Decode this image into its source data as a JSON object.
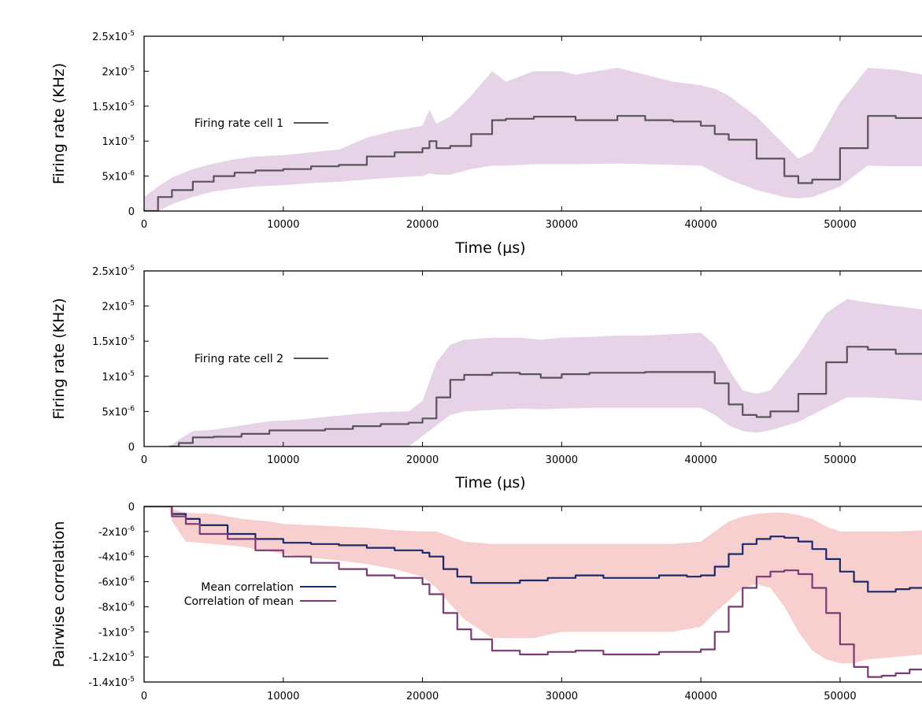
{
  "chart_data": [
    {
      "type": "line",
      "xlabel": "Time (µs)",
      "ylabel": "Firing rate (KHz)",
      "xlim": [
        0,
        56000
      ],
      "ylim": [
        0,
        2.5e-05
      ],
      "x_ticks": [
        0,
        10000,
        20000,
        30000,
        40000,
        50000
      ],
      "x_tick_labels": [
        "0",
        "10000",
        "20000",
        "30000",
        "40000",
        "50000"
      ],
      "y_ticks": [
        0,
        5e-06,
        1e-05,
        1.5e-05,
        2e-05,
        2.5e-05
      ],
      "y_tick_labels": [
        {
          "base": "0",
          "exp": ""
        },
        {
          "base": "5x10",
          "exp": "-6"
        },
        {
          "base": "1x10",
          "exp": "-5"
        },
        {
          "base": "1.5x10",
          "exp": "-5"
        },
        {
          "base": "2x10",
          "exp": "-5"
        },
        {
          "base": "2.5x10",
          "exp": "-5"
        }
      ],
      "legend_position": "left",
      "series": [
        {
          "name": "Firing rate cell 1",
          "color": "#595459",
          "band_color": "#e6d3e8",
          "x": [
            0,
            1000,
            2000,
            3500,
            5000,
            6500,
            8000,
            10000,
            12000,
            14000,
            16000,
            18000,
            20000,
            20500,
            21000,
            22000,
            23500,
            25000,
            26000,
            28000,
            30000,
            31000,
            34000,
            36000,
            38000,
            40000,
            41000,
            42000,
            44000,
            46000,
            47000,
            48000,
            50000,
            52000,
            54000,
            56000
          ],
          "y": [
            0,
            2e-06,
            3e-06,
            4.2e-06,
            5e-06,
            5.5e-06,
            5.8e-06,
            6e-06,
            6.4e-06,
            6.6e-06,
            7.8e-06,
            8.4e-06,
            9e-06,
            1e-05,
            9e-06,
            9.3e-06,
            1.1e-05,
            1.3e-05,
            1.32e-05,
            1.35e-05,
            1.35e-05,
            1.3e-05,
            1.36e-05,
            1.3e-05,
            1.28e-05,
            1.22e-05,
            1.1e-05,
            1.02e-05,
            7.5e-06,
            5e-06,
            4e-06,
            4.5e-06,
            9e-06,
            1.36e-05,
            1.33e-05,
            1.28e-05
          ],
          "upper": [
            2e-06,
            3.5e-06,
            4.8e-06,
            6e-06,
            6.8e-06,
            7.4e-06,
            7.8e-06,
            8e-06,
            8.4e-06,
            8.8e-06,
            1.05e-05,
            1.15e-05,
            1.22e-05,
            1.45e-05,
            1.25e-05,
            1.35e-05,
            1.65e-05,
            2e-05,
            1.85e-05,
            2e-05,
            2e-05,
            1.95e-05,
            2.05e-05,
            1.95e-05,
            1.85e-05,
            1.8e-05,
            1.75e-05,
            1.65e-05,
            1.35e-05,
            9.5e-06,
            7.5e-06,
            8.5e-06,
            1.55e-05,
            2.05e-05,
            2.02e-05,
            1.95e-05
          ],
          "lower": [
            0,
            0,
            1e-06,
            2e-06,
            2.8e-06,
            3.2e-06,
            3.5e-06,
            3.7e-06,
            4e-06,
            4.2e-06,
            4.5e-06,
            4.8e-06,
            5e-06,
            5.4e-06,
            5.2e-06,
            5.2e-06,
            6e-06,
            6.5e-06,
            6.5e-06,
            6.7e-06,
            6.7e-06,
            6.7e-06,
            6.8e-06,
            6.7e-06,
            6.6e-06,
            6.5e-06,
            5.5e-06,
            4.5e-06,
            3e-06,
            2e-06,
            1.8e-06,
            2e-06,
            3.5e-06,
            6.5e-06,
            6.4e-06,
            6.4e-06
          ]
        }
      ]
    },
    {
      "type": "line",
      "xlabel": "Time (µs)",
      "ylabel": "Firing rate (KHz)",
      "xlim": [
        0,
        56000
      ],
      "ylim": [
        0,
        2.5e-05
      ],
      "x_ticks": [
        0,
        10000,
        20000,
        30000,
        40000,
        50000
      ],
      "x_tick_labels": [
        "0",
        "10000",
        "20000",
        "30000",
        "40000",
        "50000"
      ],
      "y_ticks": [
        0,
        5e-06,
        1e-05,
        1.5e-05,
        2e-05,
        2.5e-05
      ],
      "y_tick_labels": [
        {
          "base": "0",
          "exp": ""
        },
        {
          "base": "5x10",
          "exp": "-6"
        },
        {
          "base": "1x10",
          "exp": "-5"
        },
        {
          "base": "1.5x10",
          "exp": "-5"
        },
        {
          "base": "2x10",
          "exp": "-5"
        },
        {
          "base": "2.5x10",
          "exp": "-5"
        }
      ],
      "legend_position": "left",
      "series": [
        {
          "name": "Firing rate cell 2",
          "color": "#595459",
          "band_color": "#e6d3e8",
          "x": [
            1800,
            2500,
            3500,
            5000,
            7000,
            9000,
            11000,
            13000,
            15000,
            17000,
            19000,
            20000,
            21000,
            22000,
            23000,
            25000,
            27000,
            28500,
            30000,
            32000,
            34000,
            36000,
            38000,
            40000,
            41000,
            42000,
            43000,
            44000,
            45000,
            47000,
            49000,
            50500,
            52000,
            54000,
            56000
          ],
          "y": [
            0,
            5e-07,
            1.3e-06,
            1.4e-06,
            1.8e-06,
            2.3e-06,
            2.3e-06,
            2.5e-06,
            2.9e-06,
            3.2e-06,
            3.4e-06,
            4e-06,
            7e-06,
            9.5e-06,
            1.02e-05,
            1.05e-05,
            1.03e-05,
            9.8e-06,
            1.03e-05,
            1.05e-05,
            1.05e-05,
            1.06e-05,
            1.06e-05,
            1.06e-05,
            9e-06,
            6e-06,
            4.5e-06,
            4.2e-06,
            5e-06,
            7.5e-06,
            1.2e-05,
            1.42e-05,
            1.38e-05,
            1.32e-05,
            1.28e-05
          ],
          "upper": [
            0,
            1e-06,
            2.2e-06,
            2.4e-06,
            3e-06,
            3.6e-06,
            3.8e-06,
            4.2e-06,
            4.6e-06,
            4.9e-06,
            5e-06,
            6.5e-06,
            1.2e-05,
            1.45e-05,
            1.52e-05,
            1.55e-05,
            1.55e-05,
            1.52e-05,
            1.55e-05,
            1.56e-05,
            1.58e-05,
            1.58e-05,
            1.6e-05,
            1.62e-05,
            1.45e-05,
            1.1e-05,
            8e-06,
            7.5e-06,
            8e-06,
            1.3e-05,
            1.9e-05,
            2.1e-05,
            2.05e-05,
            2e-05,
            1.95e-05
          ],
          "lower": [
            0,
            0,
            0,
            0,
            0,
            0,
            0,
            0,
            0,
            0,
            0,
            1.5e-06,
            3e-06,
            4.5e-06,
            5e-06,
            5.2e-06,
            5.4e-06,
            5.3e-06,
            5.4e-06,
            5.5e-06,
            5.5e-06,
            5.5e-06,
            5.5e-06,
            5.5e-06,
            4.5e-06,
            3e-06,
            2.2e-06,
            2e-06,
            2.3e-06,
            3.5e-06,
            5.5e-06,
            7e-06,
            7e-06,
            6.8e-06,
            6.5e-06
          ]
        }
      ]
    },
    {
      "type": "line",
      "xlabel": "",
      "ylabel": "Pairwise correlation",
      "xlim": [
        0,
        56000
      ],
      "ylim": [
        -1.4e-05,
        0
      ],
      "x_ticks": [
        0,
        10000,
        20000,
        30000,
        40000,
        50000
      ],
      "x_tick_labels": [
        "0",
        "10000",
        "20000",
        "30000",
        "40000",
        "50000"
      ],
      "y_ticks": [
        0,
        -2e-06,
        -4e-06,
        -6e-06,
        -8e-06,
        -1e-05,
        -1.2e-05,
        -1.4e-05
      ],
      "y_tick_labels": [
        {
          "base": "0",
          "exp": ""
        },
        {
          "base": "-2x10",
          "exp": "-6"
        },
        {
          "base": "-4x10",
          "exp": "-6"
        },
        {
          "base": "-6x10",
          "exp": "-6"
        },
        {
          "base": "-8x10",
          "exp": "-6"
        },
        {
          "base": "-1x10",
          "exp": "-5"
        },
        {
          "base": "-1.2x10",
          "exp": "-5"
        },
        {
          "base": "-1.4x10",
          "exp": "-5"
        }
      ],
      "legend_position": "left",
      "band": {
        "color": "#f7cfcf",
        "x": [
          0,
          1800,
          2000,
          3000,
          5000,
          7000,
          9000,
          10000,
          12000,
          14000,
          16000,
          18000,
          20000,
          21000,
          22000,
          23000,
          25000,
          28000,
          30000,
          32000,
          35000,
          38000,
          40000,
          41000,
          42000,
          43000,
          44000,
          45000,
          46000,
          47000,
          48000,
          49000,
          50000,
          51000,
          52000,
          54000,
          56000
        ],
        "upper": [
          0,
          0,
          -2e-07,
          -5e-07,
          -6e-07,
          -1e-06,
          -1.2e-06,
          -1.4e-06,
          -1.5e-06,
          -1.6e-06,
          -1.7e-06,
          -1.9e-06,
          -2e-06,
          -2e-06,
          -2.4e-06,
          -2.8e-06,
          -3e-06,
          -3e-06,
          -3e-06,
          -3e-06,
          -3e-06,
          -3e-06,
          -2.8e-06,
          -2e-06,
          -1.2e-06,
          -8e-07,
          -6e-07,
          -5e-07,
          -5e-07,
          -7e-07,
          -1e-06,
          -1.6e-06,
          -2e-06,
          -2e-06,
          -2e-06,
          -2e-06,
          -1.9e-06
        ],
        "lower": [
          0,
          0,
          -1.2e-06,
          -2.8e-06,
          -3e-06,
          -3.2e-06,
          -3.6e-06,
          -3.8e-06,
          -4.1e-06,
          -4.3e-06,
          -4.6e-06,
          -5e-06,
          -5.6e-06,
          -6.5e-06,
          -7.8e-06,
          -9e-06,
          -1.05e-05,
          -1.05e-05,
          -1e-05,
          -1e-05,
          -1e-05,
          -1e-05,
          -9.6e-06,
          -8.5e-06,
          -7.5e-06,
          -6.5e-06,
          -6.2e-06,
          -6.5e-06,
          -8e-06,
          -1e-05,
          -1.15e-05,
          -1.22e-05,
          -1.25e-05,
          -1.25e-05,
          -1.22e-05,
          -1.2e-05,
          -1.18e-05
        ]
      },
      "series": [
        {
          "name": "Mean correlation",
          "color": "#1b2a6b",
          "x": [
            0,
            1800,
            2000,
            3000,
            4000,
            6000,
            8000,
            10000,
            12000,
            14000,
            16000,
            18000,
            20000,
            20500,
            21500,
            22500,
            23500,
            25000,
            27000,
            29000,
            31000,
            33000,
            35000,
            37000,
            39000,
            40000,
            41000,
            42000,
            43000,
            44000,
            45000,
            46000,
            47000,
            48000,
            49000,
            50000,
            51000,
            52000,
            53000,
            54000,
            55000,
            56000
          ],
          "y": [
            0,
            0,
            -6e-07,
            -1e-06,
            -1.5e-06,
            -2.2e-06,
            -2.6e-06,
            -2.9e-06,
            -3e-06,
            -3.1e-06,
            -3.3e-06,
            -3.5e-06,
            -3.7e-06,
            -4e-06,
            -5e-06,
            -5.6e-06,
            -6.1e-06,
            -6.1e-06,
            -5.9e-06,
            -5.7e-06,
            -5.5e-06,
            -5.7e-06,
            -5.7e-06,
            -5.5e-06,
            -5.6e-06,
            -5.5e-06,
            -4.8e-06,
            -3.8e-06,
            -3e-06,
            -2.6e-06,
            -2.4e-06,
            -2.5e-06,
            -2.8e-06,
            -3.4e-06,
            -4.2e-06,
            -5.2e-06,
            -6e-06,
            -6.8e-06,
            -6.8e-06,
            -6.6e-06,
            -6.5e-06,
            -6.4e-06
          ]
        },
        {
          "name": "Correlation of mean",
          "color": "#7b3a75",
          "x": [
            0,
            1800,
            2000,
            3000,
            4000,
            6000,
            8000,
            10000,
            12000,
            14000,
            16000,
            18000,
            20000,
            20500,
            21500,
            22500,
            23500,
            25000,
            27000,
            29000,
            31000,
            33000,
            35000,
            37000,
            39000,
            40000,
            41000,
            42000,
            43000,
            44000,
            45000,
            46000,
            47000,
            48000,
            49000,
            50000,
            51000,
            52000,
            53000,
            54000,
            55000,
            56000
          ],
          "y": [
            0,
            0,
            -8e-07,
            -1.4e-06,
            -2.2e-06,
            -2.6e-06,
            -3.5e-06,
            -4e-06,
            -4.5e-06,
            -5e-06,
            -5.5e-06,
            -5.7e-06,
            -6.2e-06,
            -7e-06,
            -8.5e-06,
            -9.8e-06,
            -1.06e-05,
            -1.15e-05,
            -1.18e-05,
            -1.16e-05,
            -1.15e-05,
            -1.18e-05,
            -1.18e-05,
            -1.16e-05,
            -1.16e-05,
            -1.14e-05,
            -1e-05,
            -8e-06,
            -6.5e-06,
            -5.6e-06,
            -5.2e-06,
            -5.1e-06,
            -5.4e-06,
            -6.5e-06,
            -8.5e-06,
            -1.1e-05,
            -1.28e-05,
            -1.36e-05,
            -1.35e-05,
            -1.33e-05,
            -1.3e-05,
            -1.28e-05
          ]
        }
      ]
    }
  ]
}
